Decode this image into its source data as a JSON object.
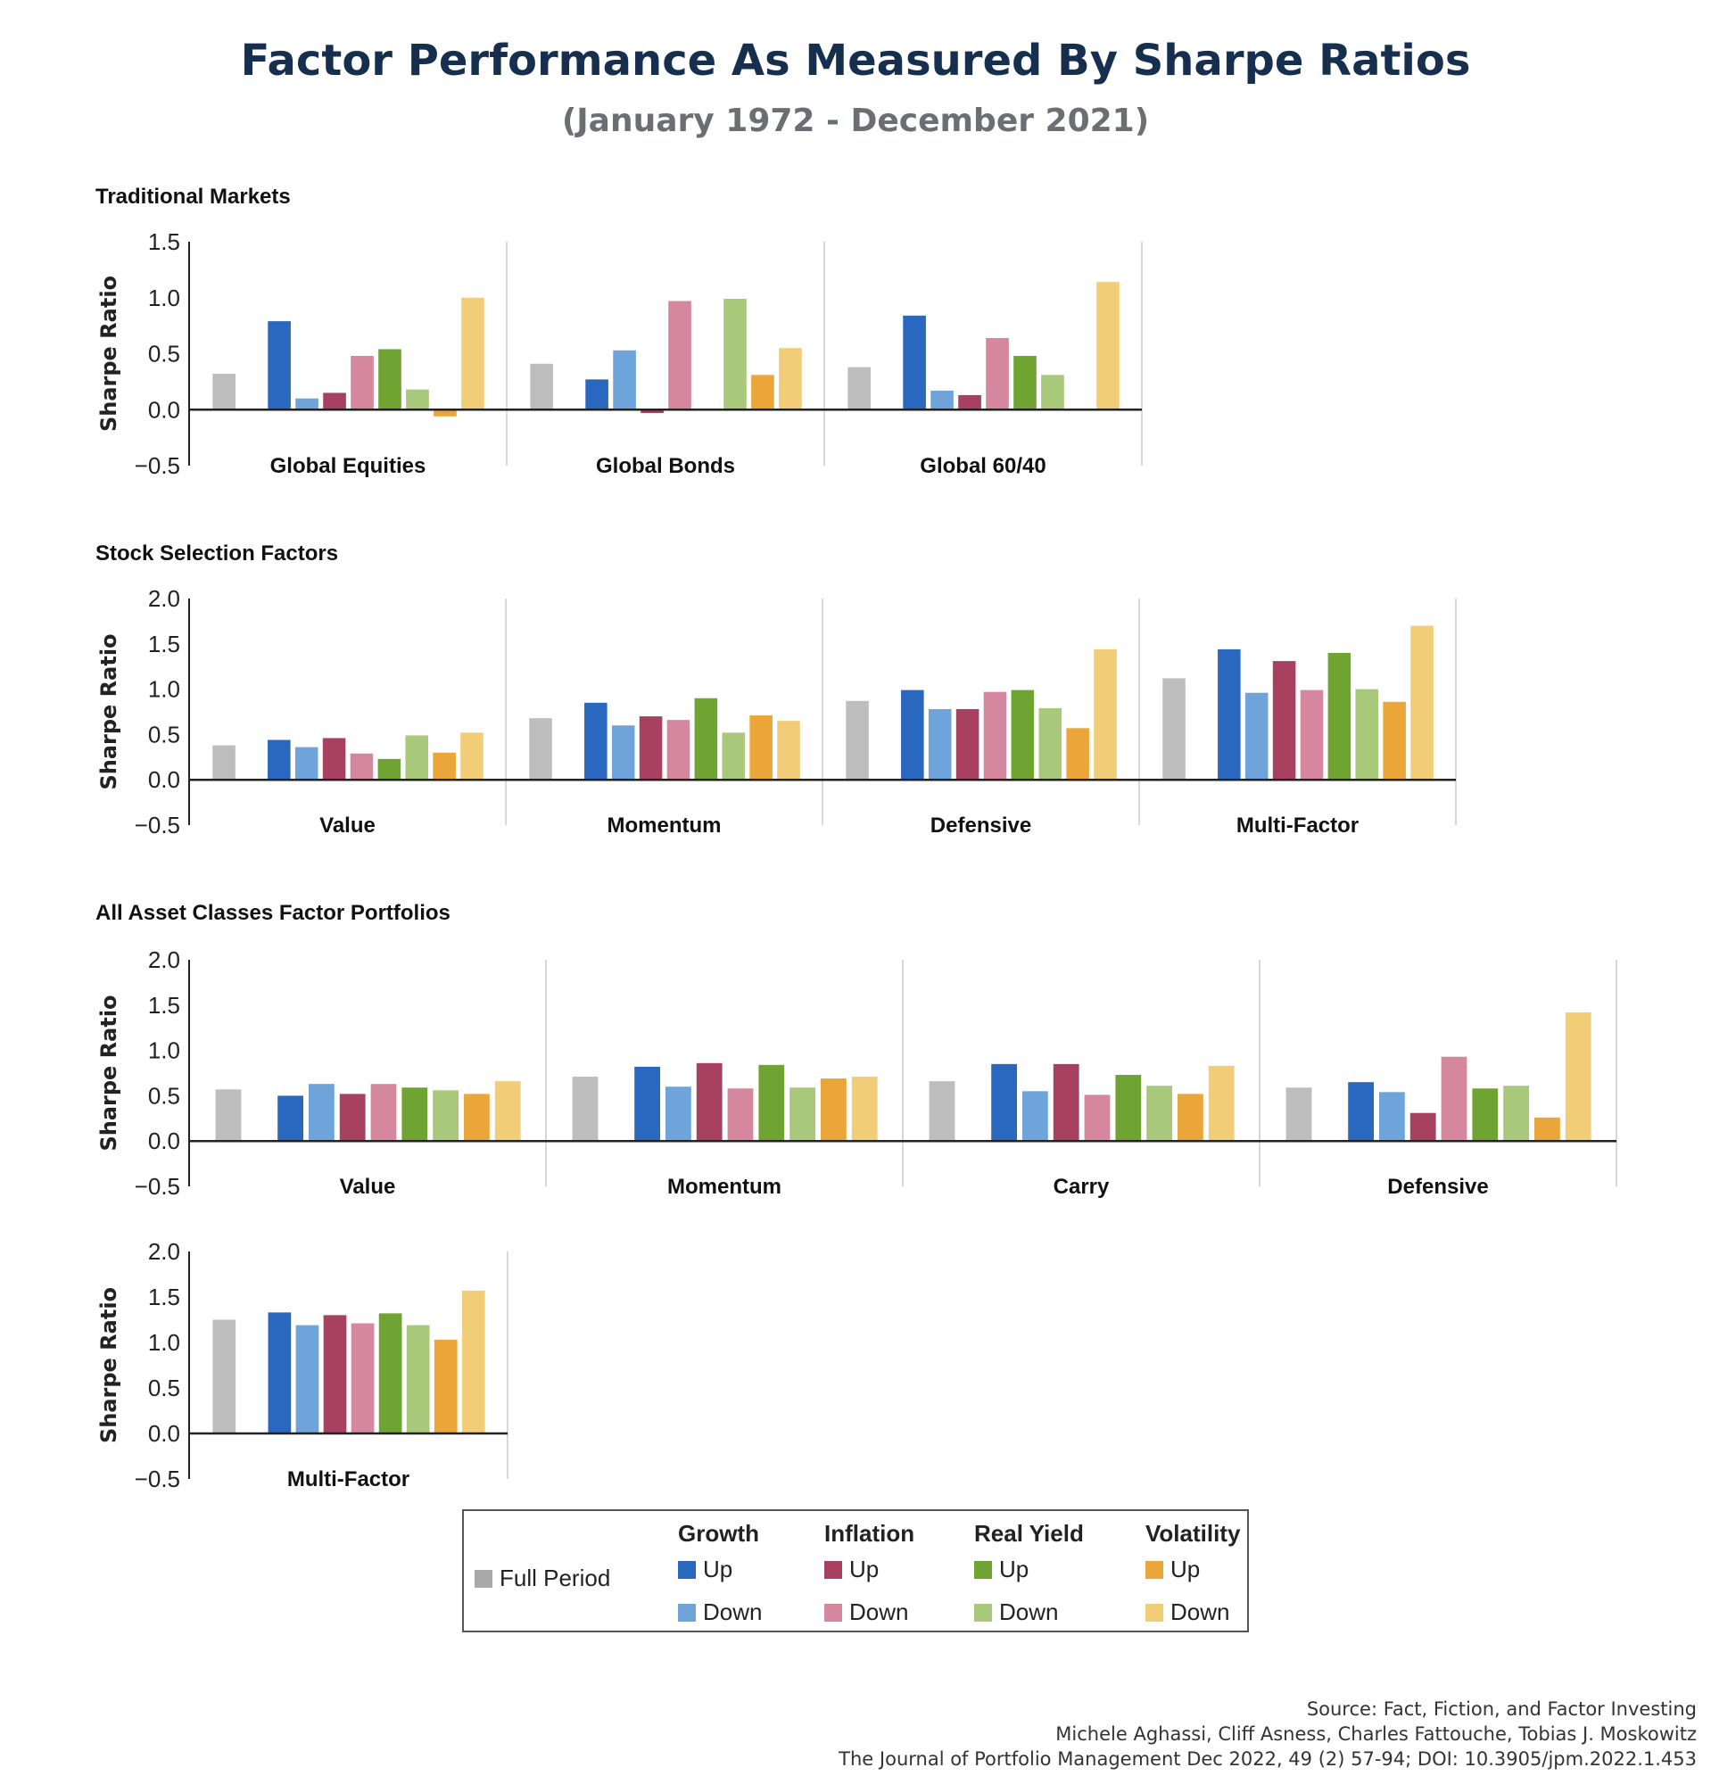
{
  "title": "Factor Performance As Measured By Sharpe Ratios",
  "subtitle": "(January 1972 - December 2021)",
  "colors": {
    "full": "#bdbdbd",
    "growth_up": "#2a68c0",
    "growth_down": "#6fa4da",
    "inflation_up": "#a8405f",
    "inflation_down": "#d4879f",
    "real_yield_up": "#6fa332",
    "real_yield_down": "#a9c97a",
    "volatility_up": "#eba63a",
    "volatility_down": "#f1cd78"
  },
  "legend": {
    "full_period": "Full Period",
    "groups": [
      {
        "name": "Growth",
        "up": "Up",
        "down": "Down"
      },
      {
        "name": "Inflation",
        "up": "Up",
        "down": "Down"
      },
      {
        "name": "Real Yield",
        "up": "Up",
        "down": "Down"
      },
      {
        "name": "Volatility",
        "up": "Up",
        "down": "Down"
      }
    ]
  },
  "source": [
    "Source: Fact, Fiction, and Factor Investing",
    "Michele Aghassi, Cliff Asness, Charles Fattouche, Tobias J. Moskowitz",
    "The Journal of Portfolio Management Dec 2022, 49 (2) 57-94; DOI: 10.3905/jpm.2022.1.453"
  ],
  "chart_data": [
    {
      "type": "bar",
      "title": "Traditional Markets",
      "ylabel": "Sharpe Ratio",
      "ylim": [
        -0.5,
        1.5
      ],
      "yticks": [
        "1.5",
        "1.0",
        "0.5",
        "0.0",
        "−0.5"
      ],
      "series_order": [
        "Full Period",
        "Growth Up",
        "Growth Down",
        "Inflation Up",
        "Inflation Down",
        "Real Yield Up",
        "Real Yield Down",
        "Volatility Up",
        "Volatility Down"
      ],
      "categories": [
        "Global Equities",
        "Global Bonds",
        "Global 60/40"
      ],
      "values": [
        [
          0.32,
          0.79,
          0.1,
          0.15,
          0.48,
          0.54,
          0.18,
          -0.06,
          1.0
        ],
        [
          0.41,
          0.27,
          0.53,
          -0.03,
          0.97,
          -0.01,
          0.99,
          0.31,
          0.55
        ],
        [
          0.38,
          0.84,
          0.17,
          0.13,
          0.64,
          0.48,
          0.31,
          0.0,
          1.14
        ]
      ]
    },
    {
      "type": "bar",
      "title": "Stock Selection Factors",
      "ylabel": "Sharpe Ratio",
      "ylim": [
        -0.5,
        2.0
      ],
      "yticks": [
        "2.0",
        "1.5",
        "1.0",
        "0.5",
        "0.0",
        "−0.5"
      ],
      "categories": [
        "Value",
        "Momentum",
        "Defensive",
        "Multi-Factor"
      ],
      "values": [
        [
          0.38,
          0.44,
          0.36,
          0.46,
          0.29,
          0.23,
          0.49,
          0.3,
          0.52
        ],
        [
          0.68,
          0.85,
          0.6,
          0.7,
          0.66,
          0.9,
          0.52,
          0.71,
          0.65
        ],
        [
          0.87,
          0.99,
          0.78,
          0.78,
          0.97,
          0.99,
          0.79,
          0.57,
          1.44
        ],
        [
          1.12,
          1.44,
          0.96,
          1.31,
          0.99,
          1.4,
          1.0,
          0.86,
          1.7
        ]
      ]
    },
    {
      "type": "bar",
      "title": "All Asset Classes Factor Portfolios",
      "ylabel": "Sharpe Ratio",
      "ylim": [
        -0.5,
        2.0
      ],
      "yticks": [
        "2.0",
        "1.5",
        "1.0",
        "0.5",
        "0.0",
        "−0.5"
      ],
      "categories": [
        "Value",
        "Momentum",
        "Carry",
        "Defensive"
      ],
      "values": [
        [
          0.57,
          0.5,
          0.63,
          0.52,
          0.63,
          0.59,
          0.56,
          0.52,
          0.66
        ],
        [
          0.71,
          0.82,
          0.6,
          0.86,
          0.58,
          0.84,
          0.59,
          0.69,
          0.71
        ],
        [
          0.66,
          0.85,
          0.55,
          0.85,
          0.51,
          0.73,
          0.61,
          0.52,
          0.83
        ],
        [
          0.59,
          0.65,
          0.54,
          0.31,
          0.93,
          0.58,
          0.61,
          0.26,
          1.42
        ]
      ]
    },
    {
      "type": "bar",
      "title": "",
      "ylabel": "Sharpe Ratio",
      "ylim": [
        -0.5,
        2.0
      ],
      "yticks": [
        "2.0",
        "1.5",
        "1.0",
        "0.5",
        "0.0",
        "−0.5"
      ],
      "categories": [
        "Multi-Factor"
      ],
      "values": [
        [
          1.25,
          1.33,
          1.19,
          1.3,
          1.21,
          1.32,
          1.19,
          1.03,
          1.57
        ]
      ]
    }
  ]
}
